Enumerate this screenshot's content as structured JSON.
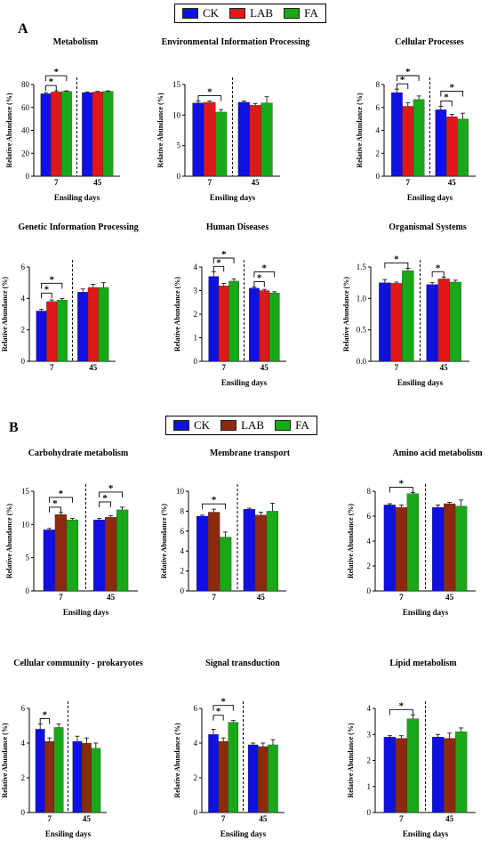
{
  "panel_letters": [
    "A",
    "B"
  ],
  "legend": [
    {
      "label": "CK",
      "color": "#1010e0"
    },
    {
      "label": "LAB",
      "color": "#e01818"
    },
    {
      "label": "FA",
      "color": "#18a818"
    }
  ],
  "legend_b": [
    {
      "label": "CK",
      "color": "#1010e0"
    },
    {
      "label": "LAB",
      "color": "#8b2a0e"
    },
    {
      "label": "FA",
      "color": "#18a818"
    }
  ],
  "chart_data": [
    {
      "type": "bar",
      "title": "Metabolism",
      "ylabel": "Relative Abundance (%)",
      "xlabel": "Ensiling days",
      "categories": [
        "7",
        "45"
      ],
      "ylim": [
        0,
        80
      ],
      "yticks": [
        "0",
        "20",
        "40",
        "60",
        "80"
      ],
      "series": [
        {
          "name": "CK",
          "values": [
            72,
            73
          ],
          "errors": [
            1,
            0.5
          ]
        },
        {
          "name": "LAB",
          "values": [
            73.5,
            73.5
          ],
          "errors": [
            1,
            0.5
          ]
        },
        {
          "name": "FA",
          "values": [
            74,
            74
          ],
          "errors": [
            0.5,
            0.5
          ]
        }
      ],
      "sig": [
        {
          "group": 0,
          "from": 0,
          "to": 1,
          "level": 0,
          "label": "*"
        },
        {
          "group": 0,
          "from": 0,
          "to": 2,
          "level": 1,
          "label": "*"
        }
      ]
    },
    {
      "type": "bar",
      "title": "Environmental Information Processing",
      "ylabel": "Relative Abundance (%)",
      "xlabel": "Ensiling days",
      "categories": [
        "7",
        "45"
      ],
      "ylim": [
        0,
        15
      ],
      "yticks": [
        "0",
        "5",
        "10",
        "15"
      ],
      "series": [
        {
          "name": "CK",
          "values": [
            12,
            12.1
          ],
          "errors": [
            0.3,
            0.2
          ]
        },
        {
          "name": "LAB",
          "values": [
            12.1,
            11.6
          ],
          "errors": [
            0.2,
            0.3
          ]
        },
        {
          "name": "FA",
          "values": [
            10.5,
            12
          ],
          "errors": [
            0.4,
            1
          ]
        }
      ],
      "sig": [
        {
          "group": 0,
          "from": 0,
          "to": 2,
          "level": 0,
          "label": "*"
        }
      ]
    },
    {
      "type": "bar",
      "title": "Cellular Processes",
      "ylabel": "Relative Abundance (%)",
      "xlabel": "Ensiling days",
      "categories": [
        "7",
        "45"
      ],
      "ylim": [
        0,
        8
      ],
      "yticks": [
        "0",
        "2",
        "4",
        "6",
        "8"
      ],
      "series": [
        {
          "name": "CK",
          "values": [
            7.3,
            5.8
          ],
          "errors": [
            0.3,
            0.3
          ]
        },
        {
          "name": "LAB",
          "values": [
            6.1,
            5.2
          ],
          "errors": [
            0.3,
            0.2
          ]
        },
        {
          "name": "FA",
          "values": [
            6.7,
            5
          ],
          "errors": [
            0.3,
            0.5
          ]
        }
      ],
      "sig": [
        {
          "group": 0,
          "from": 0,
          "to": 1,
          "level": 0,
          "label": "*"
        },
        {
          "group": 0,
          "from": 0,
          "to": 2,
          "level": 1,
          "label": "*"
        },
        {
          "group": 1,
          "from": 0,
          "to": 1,
          "level": 0,
          "label": "*"
        },
        {
          "group": 1,
          "from": 0,
          "to": 2,
          "level": 1,
          "label": "*"
        }
      ]
    },
    {
      "type": "bar",
      "title": "Genetic Information Processing",
      "ylabel": "Relative Abundance (%)",
      "xlabel": "",
      "categories": [
        "7",
        "45"
      ],
      "ylim": [
        0,
        6
      ],
      "yticks": [
        "0",
        "2",
        "4",
        "6"
      ],
      "series": [
        {
          "name": "CK",
          "values": [
            3.2,
            4.4
          ],
          "errors": [
            0.1,
            0.2
          ]
        },
        {
          "name": "LAB",
          "values": [
            3.8,
            4.7
          ],
          "errors": [
            0.1,
            0.2
          ]
        },
        {
          "name": "FA",
          "values": [
            3.9,
            4.7
          ],
          "errors": [
            0.1,
            0.3
          ]
        }
      ],
      "sig": [
        {
          "group": 0,
          "from": 0,
          "to": 1,
          "level": 0,
          "label": "*"
        },
        {
          "group": 0,
          "from": 0,
          "to": 2,
          "level": 1,
          "label": "*"
        }
      ]
    },
    {
      "type": "bar",
      "title": "Human Diseases",
      "ylabel": "Relative Abundance (%)",
      "xlabel": "Ensiling days",
      "categories": [
        "7",
        "45"
      ],
      "ylim": [
        0,
        4
      ],
      "yticks": [
        "0",
        "1",
        "2",
        "3",
        "4"
      ],
      "series": [
        {
          "name": "CK",
          "values": [
            3.6,
            3.1
          ],
          "errors": [
            0.2,
            0.05
          ]
        },
        {
          "name": "LAB",
          "values": [
            3.2,
            3.0
          ],
          "errors": [
            0.1,
            0.05
          ]
        },
        {
          "name": "FA",
          "values": [
            3.4,
            2.9
          ],
          "errors": [
            0.1,
            0.05
          ]
        }
      ],
      "sig": [
        {
          "group": 0,
          "from": 0,
          "to": 1,
          "level": 0,
          "label": "*"
        },
        {
          "group": 0,
          "from": 0,
          "to": 2,
          "level": 1,
          "label": "*"
        },
        {
          "group": 1,
          "from": 0,
          "to": 1,
          "level": 0,
          "label": "*"
        },
        {
          "group": 1,
          "from": 0,
          "to": 2,
          "level": 1,
          "label": "*"
        }
      ]
    },
    {
      "type": "bar",
      "title": "Organismal Systems",
      "ylabel": "Relative Abundance (%)",
      "xlabel": "Ensiling days",
      "categories": [
        "7",
        "45"
      ],
      "ylim": [
        0,
        1.5
      ],
      "yticks": [
        "0.0",
        "0.5",
        "1.0",
        "1.5"
      ],
      "series": [
        {
          "name": "CK",
          "values": [
            1.25,
            1.22
          ],
          "errors": [
            0.05,
            0.03
          ]
        },
        {
          "name": "LAB",
          "values": [
            1.24,
            1.31
          ],
          "errors": [
            0.02,
            0.03
          ]
        },
        {
          "name": "FA",
          "values": [
            1.44,
            1.26
          ],
          "errors": [
            0.04,
            0.03
          ]
        }
      ],
      "sig": [
        {
          "group": 0,
          "from": 0,
          "to": 2,
          "level": 0,
          "label": "*"
        },
        {
          "group": 1,
          "from": 0,
          "to": 1,
          "level": 0,
          "label": "*"
        }
      ]
    },
    {
      "type": "bar",
      "title": "Carbohydrate metabolism",
      "ylabel": "Relative Abundance (%)",
      "xlabel": "Ensiling days",
      "categories": [
        "7",
        "45"
      ],
      "ylim": [
        0,
        15
      ],
      "yticks": [
        "0",
        "5",
        "10",
        "15"
      ],
      "series": [
        {
          "name": "CK",
          "values": [
            9.2,
            10.7
          ],
          "errors": [
            0.2,
            0.2
          ]
        },
        {
          "name": "LAB",
          "values": [
            11.5,
            11.1
          ],
          "errors": [
            0.3,
            0.2
          ]
        },
        {
          "name": "FA",
          "values": [
            10.7,
            12.2
          ],
          "errors": [
            0.2,
            0.4
          ]
        }
      ],
      "sig": [
        {
          "group": 0,
          "from": 0,
          "to": 1,
          "level": 0,
          "label": "*"
        },
        {
          "group": 0,
          "from": 0,
          "to": 2,
          "level": 1,
          "label": "*"
        },
        {
          "group": 1,
          "from": 0,
          "to": 1,
          "level": 0,
          "label": "*"
        },
        {
          "group": 1,
          "from": 0,
          "to": 2,
          "level": 1,
          "label": "*"
        }
      ]
    },
    {
      "type": "bar",
      "title": "Membrane transport",
      "ylabel": "Relative Abundance (%)",
      "xlabel": "",
      "categories": [
        "7",
        "45"
      ],
      "ylim": [
        0,
        10
      ],
      "yticks": [
        "0",
        "2",
        "4",
        "6",
        "8",
        "10"
      ],
      "series": [
        {
          "name": "CK",
          "values": [
            7.5,
            8.2
          ],
          "errors": [
            0.1,
            0.1
          ]
        },
        {
          "name": "LAB",
          "values": [
            7.9,
            7.6
          ],
          "errors": [
            0.3,
            0.3
          ]
        },
        {
          "name": "FA",
          "values": [
            5.4,
            8
          ],
          "errors": [
            0.5,
            0.8
          ]
        }
      ],
      "sig": [
        {
          "group": 0,
          "from": 0,
          "to": 2,
          "level": 0,
          "label": "*"
        }
      ]
    },
    {
      "type": "bar",
      "title": "Amino acid metabolism",
      "ylabel": "Relative Abundance (%)",
      "xlabel": "Ensiling days",
      "categories": [
        "7",
        "45"
      ],
      "ylim": [
        0,
        8
      ],
      "yticks": [
        "0",
        "2",
        "4",
        "6",
        "8"
      ],
      "series": [
        {
          "name": "CK",
          "values": [
            6.9,
            6.7
          ],
          "errors": [
            0.1,
            0.2
          ]
        },
        {
          "name": "LAB",
          "values": [
            6.7,
            7
          ],
          "errors": [
            0.2,
            0.1
          ]
        },
        {
          "name": "FA",
          "values": [
            7.8,
            6.8
          ],
          "errors": [
            0.1,
            0.5
          ]
        }
      ],
      "sig": [
        {
          "group": 0,
          "from": 0,
          "to": 2,
          "level": 0,
          "label": "*"
        }
      ]
    },
    {
      "type": "bar",
      "title": "Cellular community - prokaryotes",
      "ylabel": "Relative Abundance (%)",
      "xlabel": "Ensiling days",
      "categories": [
        "7",
        "45"
      ],
      "ylim": [
        0,
        6
      ],
      "yticks": [
        "0",
        "2",
        "4",
        "6"
      ],
      "series": [
        {
          "name": "CK",
          "values": [
            4.8,
            4.1
          ],
          "errors": [
            0.3,
            0.3
          ]
        },
        {
          "name": "LAB",
          "values": [
            4.1,
            4.0
          ],
          "errors": [
            0.2,
            0.3
          ]
        },
        {
          "name": "FA",
          "values": [
            4.9,
            3.7
          ],
          "errors": [
            0.2,
            0.3
          ]
        }
      ],
      "sig": [
        {
          "group": 0,
          "from": 0,
          "to": 1,
          "level": 0,
          "label": "*"
        }
      ]
    },
    {
      "type": "bar",
      "title": "Signal transduction",
      "ylabel": "Relative Abundance (%)",
      "xlabel": "Ensiling days",
      "categories": [
        "7",
        "45"
      ],
      "ylim": [
        0,
        6
      ],
      "yticks": [
        "0",
        "2",
        "4",
        "6"
      ],
      "series": [
        {
          "name": "CK",
          "values": [
            4.5,
            3.9
          ],
          "errors": [
            0.3,
            0.1
          ]
        },
        {
          "name": "LAB",
          "values": [
            4.1,
            3.8
          ],
          "errors": [
            0.2,
            0.2
          ]
        },
        {
          "name": "FA",
          "values": [
            5.2,
            3.9
          ],
          "errors": [
            0.1,
            0.3
          ]
        }
      ],
      "sig": [
        {
          "group": 0,
          "from": 0,
          "to": 1,
          "level": 0,
          "label": "*"
        },
        {
          "group": 0,
          "from": 0,
          "to": 2,
          "level": 1,
          "label": "*"
        }
      ]
    },
    {
      "type": "bar",
      "title": "Lipid metabolism",
      "ylabel": "Relative Abundance (%)",
      "xlabel": "Ensiling days",
      "categories": [
        "7",
        "45"
      ],
      "ylim": [
        0,
        4
      ],
      "yticks": [
        "0",
        "1",
        "2",
        "3",
        "4"
      ],
      "series": [
        {
          "name": "CK",
          "values": [
            2.9,
            2.9
          ],
          "errors": [
            0.05,
            0.1
          ]
        },
        {
          "name": "LAB",
          "values": [
            2.85,
            2.85
          ],
          "errors": [
            0.1,
            0.2
          ]
        },
        {
          "name": "FA",
          "values": [
            3.6,
            3.1
          ],
          "errors": [
            0.15,
            0.15
          ]
        }
      ],
      "sig": [
        {
          "group": 0,
          "from": 0,
          "to": 2,
          "level": 0,
          "label": "*"
        }
      ]
    }
  ]
}
